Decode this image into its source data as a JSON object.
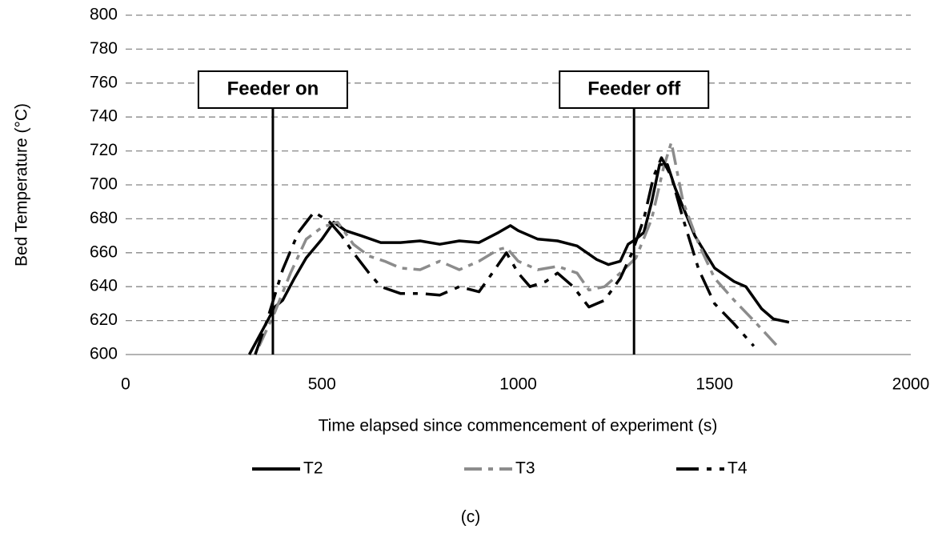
{
  "chart_data": {
    "type": "line",
    "x_label": "Time elapsed since commencement of experiment (s)",
    "y_label": "Bed Temperature (°C)",
    "caption": "(c)",
    "xlim": [
      0,
      2000
    ],
    "xticks": [
      0,
      500,
      1000,
      1500,
      2000
    ],
    "ylim": [
      600,
      800
    ],
    "yticks": [
      600,
      620,
      640,
      660,
      680,
      700,
      720,
      740,
      760,
      780,
      800
    ],
    "grid": true,
    "legend": "bottom",
    "annotations": [
      {
        "text": "Feeder on",
        "x": 375
      },
      {
        "text": "Feeder off",
        "x": 1295
      }
    ],
    "series": [
      {
        "name": "T2",
        "color": "#000000",
        "dash": "solid",
        "x": [
          315,
          350,
          380,
          400,
          430,
          460,
          500,
          530,
          560,
          600,
          650,
          700,
          750,
          800,
          850,
          900,
          950,
          980,
          1000,
          1050,
          1100,
          1150,
          1200,
          1230,
          1260,
          1280,
          1300,
          1320,
          1340,
          1360,
          1380,
          1400,
          1450,
          1500,
          1550,
          1580,
          1620,
          1650,
          1690
        ],
        "values": [
          600,
          615,
          628,
          632,
          645,
          657,
          668,
          678,
          673,
          670,
          666,
          666,
          667,
          665,
          667,
          666,
          672,
          676,
          673,
          668,
          667,
          664,
          656,
          653,
          655,
          665,
          668,
          672,
          690,
          712,
          712,
          698,
          670,
          651,
          643,
          640,
          627,
          621,
          619
        ]
      },
      {
        "name": "T3",
        "color": "#8c8c8c",
        "dash": "dash",
        "x": [
          340,
          380,
          420,
          460,
          500,
          540,
          580,
          620,
          660,
          700,
          750,
          800,
          850,
          900,
          950,
          970,
          1000,
          1050,
          1100,
          1150,
          1180,
          1220,
          1260,
          1300,
          1340,
          1370,
          1390,
          1420,
          1460,
          1500,
          1550,
          1600,
          1660
        ],
        "values": [
          605,
          625,
          648,
          668,
          675,
          678,
          665,
          658,
          655,
          651,
          650,
          655,
          650,
          655,
          662,
          663,
          655,
          650,
          652,
          648,
          638,
          640,
          648,
          657,
          680,
          710,
          725,
          690,
          665,
          645,
          632,
          620,
          605
        ]
      },
      {
        "name": "T4",
        "color": "#000000",
        "dash": "longdash",
        "x": [
          330,
          360,
          400,
          440,
          480,
          520,
          550,
          580,
          620,
          650,
          700,
          750,
          800,
          850,
          900,
          940,
          970,
          1000,
          1030,
          1070,
          1100,
          1140,
          1180,
          1220,
          1260,
          1290,
          1320,
          1345,
          1365,
          1390,
          1420,
          1460,
          1500,
          1550,
          1600
        ],
        "values": [
          600,
          620,
          650,
          672,
          684,
          678,
          670,
          660,
          648,
          640,
          636,
          636,
          635,
          640,
          637,
          650,
          660,
          648,
          640,
          643,
          648,
          640,
          628,
          632,
          645,
          660,
          680,
          705,
          716,
          705,
          680,
          650,
          630,
          618,
          605
        ]
      }
    ]
  }
}
